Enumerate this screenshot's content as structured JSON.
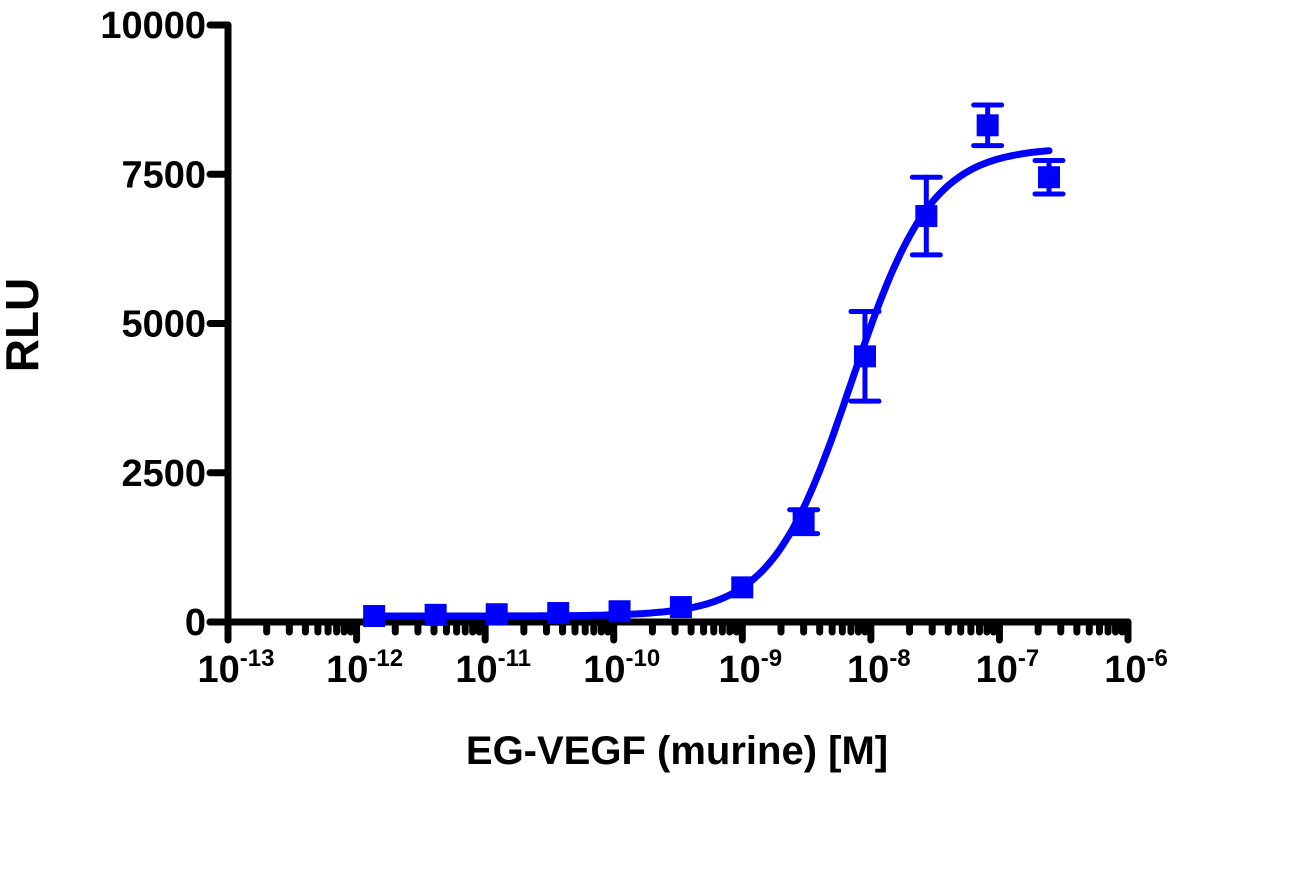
{
  "chart_data": {
    "type": "scatter",
    "xlabel": "EG-VEGF (murine) [M]",
    "ylabel": "RLU",
    "x_scale": "log",
    "xlim": [
      1e-13,
      1e-06
    ],
    "ylim": [
      0,
      10000
    ],
    "x_tick_labels": [
      {
        "base": "10",
        "exp": "-13"
      },
      {
        "base": "10",
        "exp": "-12"
      },
      {
        "base": "10",
        "exp": "-11"
      },
      {
        "base": "10",
        "exp": "-10"
      },
      {
        "base": "10",
        "exp": "-9"
      },
      {
        "base": "10",
        "exp": "-8"
      },
      {
        "base": "10",
        "exp": "-7"
      },
      {
        "base": "10",
        "exp": "-6"
      }
    ],
    "y_ticks": [
      0,
      2500,
      5000,
      7500,
      10000
    ],
    "y_tick_labels": [
      "0",
      "2500",
      "5000",
      "7500",
      "10000"
    ],
    "grid": false,
    "color": "#0000ff",
    "series": [
      {
        "marker": "square",
        "x": [
          1.37e-12,
          4.12e-12,
          1.23e-11,
          3.7e-11,
          1.11e-10,
          3.33e-10,
          1e-09,
          3e-09,
          9e-09,
          2.7e-08,
          8.1e-08,
          2.43e-07
        ],
        "y": [
          100,
          120,
          130,
          150,
          180,
          250,
          580,
          1680,
          4450,
          6800,
          8320,
          7450
        ],
        "error": [
          0,
          0,
          0,
          0,
          0,
          0,
          0,
          200,
          750,
          650,
          340,
          280
        ]
      }
    ],
    "fit": {
      "model": "four-parameter logistic",
      "bottom": 100,
      "top": 7950,
      "logEC50": -8.15,
      "hill_slope": 1.4,
      "x_range": [
        1.37e-12,
        2.43e-07
      ]
    }
  }
}
